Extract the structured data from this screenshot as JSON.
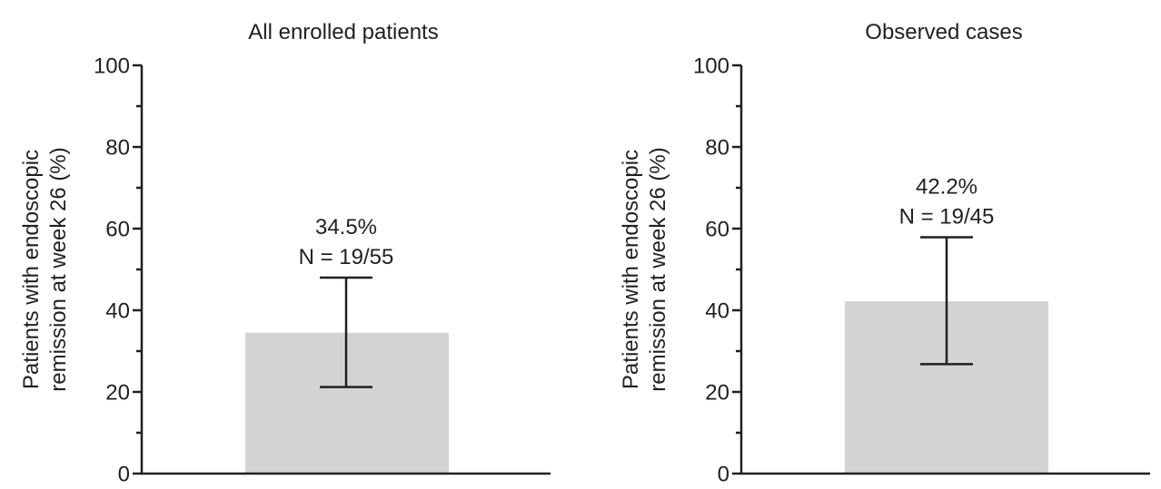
{
  "colors": {
    "bar": "#d1d3d4",
    "ink": "#231f20"
  },
  "chart_data": [
    {
      "type": "bar",
      "title": "All enrolled patients",
      "ylabel": [
        "Patients with endoscopic",
        "remission at week 26 (%)"
      ],
      "ylim": [
        0,
        100
      ],
      "yticks": [
        "0",
        "20",
        "40",
        "60",
        "80",
        "100"
      ],
      "grid": false,
      "value": 34.5,
      "error_low": 21.2,
      "error_high": 48.0,
      "value_label": "34.5%",
      "n_label": "N = 19/55"
    },
    {
      "type": "bar",
      "title": "Observed cases",
      "ylabel": [
        "Patients with endoscopic",
        "remission at week 26 (%)"
      ],
      "ylim": [
        0,
        100
      ],
      "yticks": [
        "0",
        "20",
        "40",
        "60",
        "80",
        "100"
      ],
      "grid": false,
      "value": 42.2,
      "error_low": 26.8,
      "error_high": 57.9,
      "value_label": "42.2%",
      "n_label": "N = 19/45"
    }
  ]
}
